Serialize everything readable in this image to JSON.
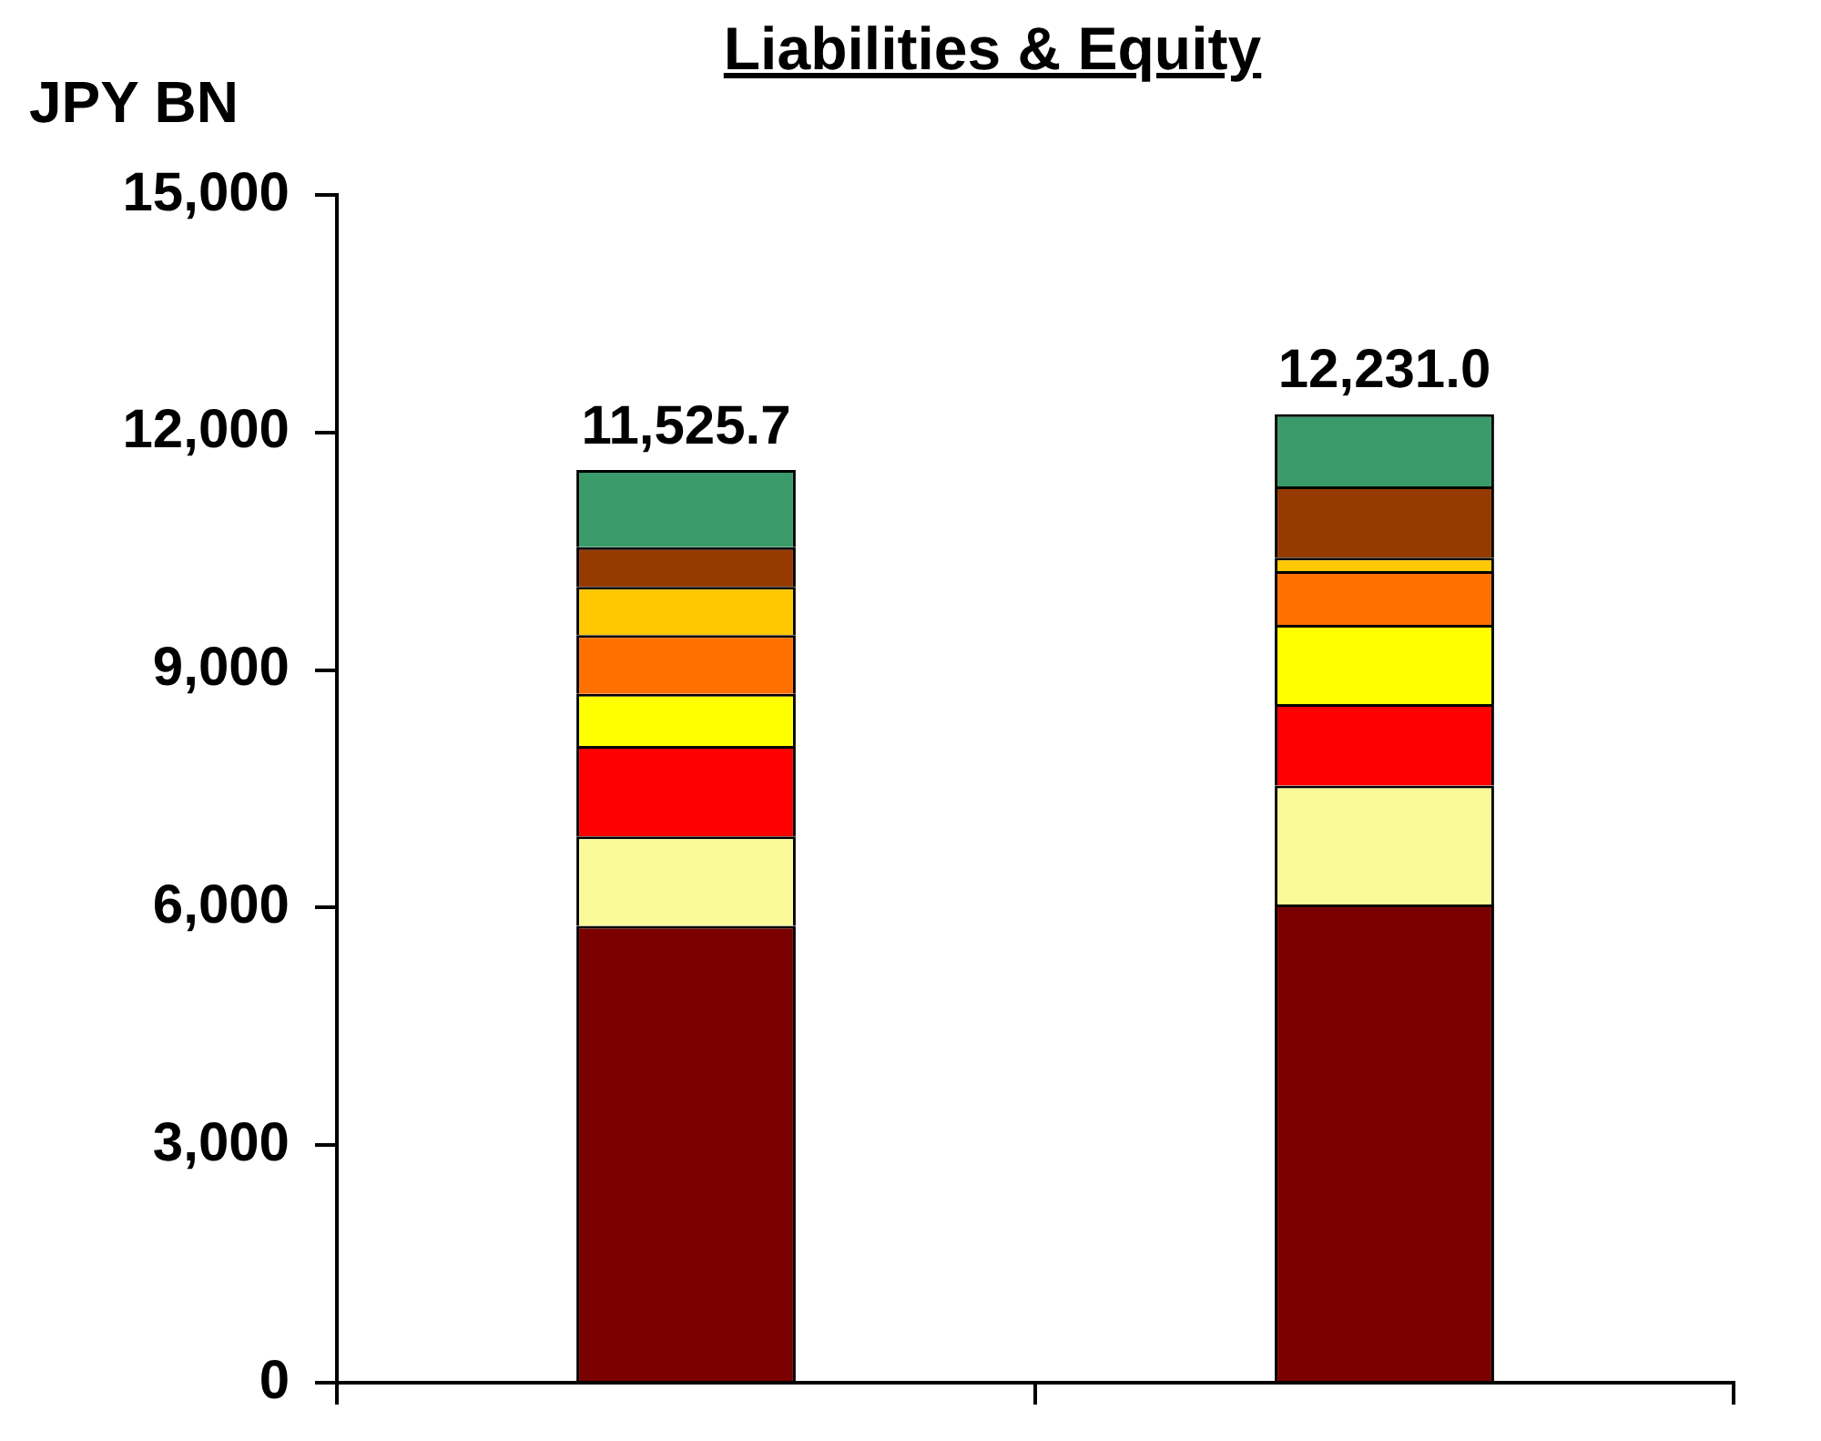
{
  "chart_data": {
    "type": "bar",
    "title": "Liabilities & Equity",
    "ylabel": "JPY BN",
    "categories": [
      null,
      null
    ],
    "stacked": true,
    "series": [
      {
        "color": "#7a0000",
        "values": [
          5770,
          6040
        ]
      },
      {
        "color": "#fafa98",
        "values": [
          1130,
          1500
        ]
      },
      {
        "color": "#ff0000",
        "values": [
          1140,
          1030
        ]
      },
      {
        "color": "#ffff00",
        "values": [
          660,
          1000
        ]
      },
      {
        "color": "#ff7000",
        "values": [
          740,
          680
        ]
      },
      {
        "color": "#ffc800",
        "values": [
          610,
          170
        ]
      },
      {
        "color": "#963a00",
        "values": [
          500,
          900
        ]
      },
      {
        "color": "#3a9a6a",
        "values": [
          975.7,
          911
        ]
      }
    ],
    "totals": [
      "11,525.7",
      "12,231.0"
    ],
    "ylim": [
      0,
      15000
    ],
    "yticks": [
      0,
      {
        "value": 3000,
        "label": "3,000"
      },
      {
        "value": 6000,
        "label": "6,000"
      },
      {
        "value": 9000,
        "label": "9,000"
      },
      {
        "value": 12000,
        "label": "12,000"
      },
      {
        "value": 15000,
        "label": "15,000"
      }
    ],
    "legend": false
  }
}
